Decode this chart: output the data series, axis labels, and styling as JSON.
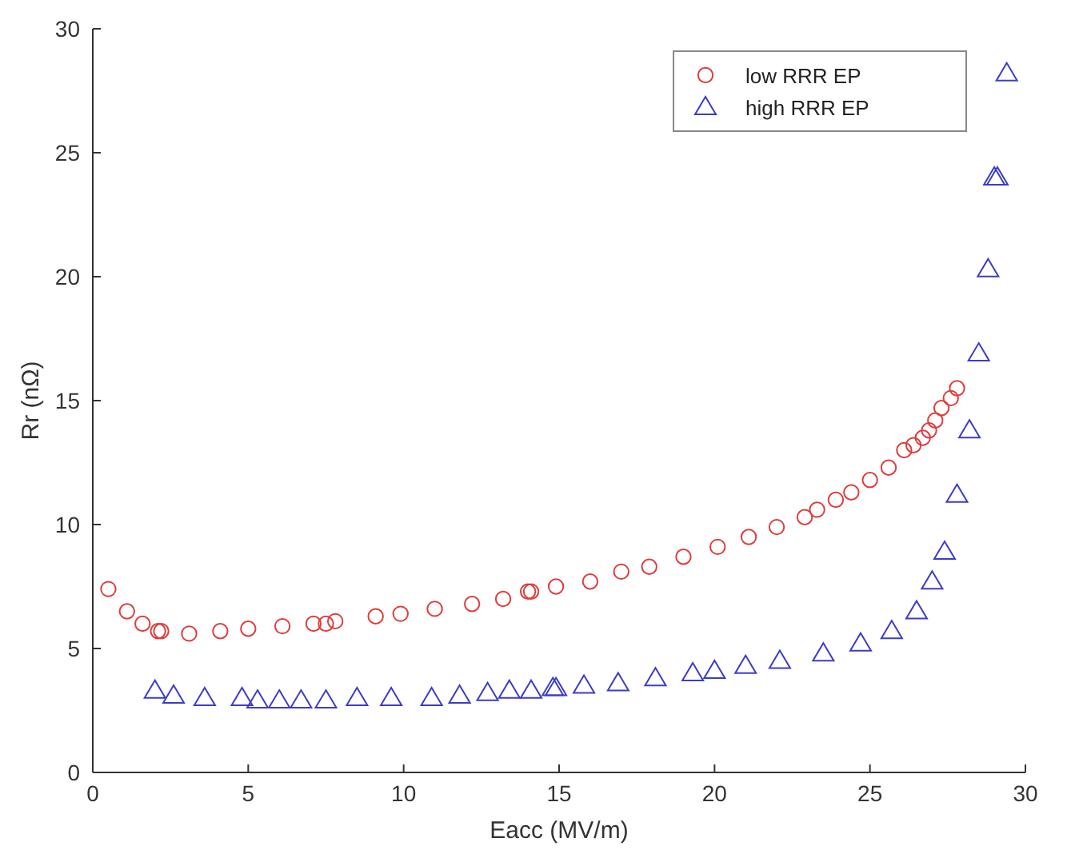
{
  "chart_data": {
    "type": "scatter",
    "xlabel": "Eacc (MV/m)",
    "ylabel": "Rr (nΩ)",
    "xlim": [
      0,
      30
    ],
    "ylim": [
      0,
      30
    ],
    "xticks": [
      0,
      5,
      10,
      15,
      20,
      25,
      30
    ],
    "yticks": [
      0,
      5,
      10,
      15,
      20,
      25,
      30
    ],
    "grid": false,
    "legend": "top right",
    "series": [
      {
        "name": "low RRR EP",
        "color": "#e03c3c",
        "marker": "circle",
        "x": [
          0.5,
          1.1,
          1.6,
          2.1,
          2.2,
          3.1,
          4.1,
          5.0,
          6.1,
          7.1,
          7.5,
          7.8,
          9.1,
          9.9,
          11.0,
          12.2,
          13.2,
          14.0,
          14.1,
          14.9,
          16.0,
          17.0,
          17.9,
          19.0,
          20.1,
          21.1,
          22.0,
          22.9,
          23.3,
          23.9,
          24.4,
          25.0,
          25.6,
          26.1,
          26.4,
          26.7,
          26.9,
          27.1,
          27.3,
          27.6,
          27.8
        ],
        "values": [
          7.4,
          6.5,
          6.0,
          5.7,
          5.7,
          5.6,
          5.7,
          5.8,
          5.9,
          6.0,
          6.0,
          6.1,
          6.3,
          6.4,
          6.6,
          6.8,
          7.0,
          7.3,
          7.3,
          7.5,
          7.7,
          8.1,
          8.3,
          8.7,
          9.1,
          9.5,
          9.9,
          10.3,
          10.6,
          11.0,
          11.3,
          11.8,
          12.3,
          13.0,
          13.2,
          13.5,
          13.8,
          14.2,
          14.7,
          15.1,
          15.5
        ]
      },
      {
        "name": "high RRR EP",
        "color": "#3c3cc8",
        "marker": "triangle",
        "x": [
          2.0,
          2.6,
          3.6,
          4.8,
          5.3,
          6.0,
          6.7,
          7.5,
          8.5,
          9.6,
          10.9,
          11.8,
          12.7,
          13.4,
          14.1,
          14.8,
          14.9,
          15.8,
          16.9,
          18.1,
          19.3,
          20.0,
          21.0,
          22.1,
          23.5,
          24.7,
          25.7,
          26.5,
          27.0,
          27.4,
          27.8,
          28.2,
          28.5,
          28.8,
          29.0,
          29.1,
          29.4
        ],
        "values": [
          3.3,
          3.1,
          3.0,
          3.0,
          2.9,
          2.9,
          2.9,
          2.9,
          3.0,
          3.0,
          3.0,
          3.1,
          3.2,
          3.3,
          3.3,
          3.4,
          3.4,
          3.5,
          3.6,
          3.8,
          4.0,
          4.1,
          4.3,
          4.5,
          4.8,
          5.2,
          5.7,
          6.5,
          7.7,
          8.9,
          11.2,
          13.8,
          16.9,
          20.3,
          24.0,
          24.0,
          28.2
        ]
      }
    ]
  }
}
